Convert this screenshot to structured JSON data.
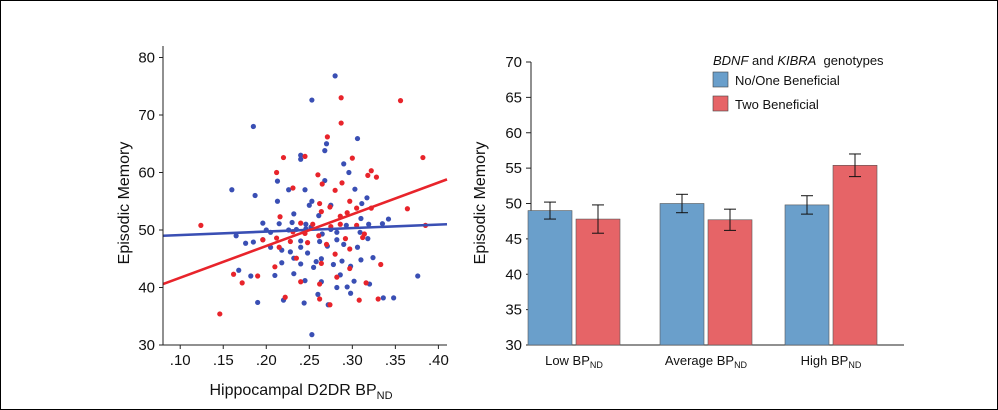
{
  "chart_data": [
    {
      "type": "scatter",
      "xlabel": "Hippocampal D2DR BP",
      "xlabel_sub": "ND",
      "ylabel": "Episodic Memory",
      "xlim": [
        0.08,
        0.41
      ],
      "ylim": [
        30,
        82
      ],
      "xticks": [
        0.1,
        0.15,
        0.2,
        0.25,
        0.3,
        0.35,
        0.4
      ],
      "xtick_labels": [
        ".10",
        ".15",
        ".20",
        ".25",
        ".30",
        ".35",
        ".40"
      ],
      "yticks": [
        30,
        40,
        50,
        60,
        70,
        80
      ],
      "ytick_labels": [
        "30",
        "40",
        "50",
        "60",
        "70",
        "80"
      ],
      "series": [
        {
          "color": "#3a4fb4",
          "fit": [
            [
              0.08,
              49.0
            ],
            [
              0.41,
              51.0
            ]
          ],
          "points": [
            [
              0.185,
              68.0
            ],
            [
              0.28,
              76.8
            ],
            [
              0.253,
              72.6
            ],
            [
              0.306,
              65.9
            ],
            [
              0.24,
              63.0
            ],
            [
              0.268,
              63.8
            ],
            [
              0.27,
              65.0
            ],
            [
              0.24,
              62.3
            ],
            [
              0.16,
              57.0
            ],
            [
              0.213,
              58.5
            ],
            [
              0.268,
              58.6
            ],
            [
              0.29,
              61.5
            ],
            [
              0.296,
              60.0
            ],
            [
              0.303,
              57.1
            ],
            [
              0.245,
              57.0
            ],
            [
              0.226,
              57.0
            ],
            [
              0.187,
              56.0
            ],
            [
              0.317,
              55.6
            ],
            [
              0.311,
              54.6
            ],
            [
              0.275,
              54.3
            ],
            [
              0.25,
              54.3
            ],
            [
              0.253,
              55.0
            ],
            [
              0.213,
              55.0
            ],
            [
              0.232,
              52.8
            ],
            [
              0.261,
              52.5
            ],
            [
              0.196,
              51.2
            ],
            [
              0.215,
              51.1
            ],
            [
              0.226,
              50.0
            ],
            [
              0.235,
              50.1
            ],
            [
              0.246,
              50.2
            ],
            [
              0.23,
              51.3
            ],
            [
              0.246,
              51.0
            ],
            [
              0.252,
              50.5
            ],
            [
              0.275,
              50.1
            ],
            [
              0.293,
              50.8
            ],
            [
              0.309,
              49.6
            ],
            [
              0.319,
              51.0
            ],
            [
              0.335,
              51.1
            ],
            [
              0.342,
              51.9
            ],
            [
              0.165,
              49.0
            ],
            [
              0.176,
              47.7
            ],
            [
              0.185,
              47.9
            ],
            [
              0.196,
              48.3
            ],
            [
              0.205,
              47.0
            ],
            [
              0.218,
              46.5
            ],
            [
              0.228,
              46.2
            ],
            [
              0.24,
              47.0
            ],
            [
              0.248,
              46.0
            ],
            [
              0.262,
              48.0
            ],
            [
              0.271,
              47.2
            ],
            [
              0.282,
              48.3
            ],
            [
              0.29,
              47.5
            ],
            [
              0.306,
              47.0
            ],
            [
              0.318,
              48.5
            ],
            [
              0.205,
              49.6
            ],
            [
              0.24,
              48.1
            ],
            [
              0.265,
              49.3
            ],
            [
              0.282,
              49.6
            ],
            [
              0.218,
              44.3
            ],
            [
              0.232,
              45.1
            ],
            [
              0.24,
              44.1
            ],
            [
              0.255,
              43.5
            ],
            [
              0.264,
              45.0
            ],
            [
              0.278,
              44.0
            ],
            [
              0.288,
              44.6
            ],
            [
              0.298,
              43.7
            ],
            [
              0.31,
              44.8
            ],
            [
              0.324,
              45.2
            ],
            [
              0.168,
              43.0
            ],
            [
              0.182,
              42.0
            ],
            [
              0.21,
              42.1
            ],
            [
              0.232,
              42.4
            ],
            [
              0.245,
              41.2
            ],
            [
              0.264,
              41.0
            ],
            [
              0.286,
              42.2
            ],
            [
              0.302,
              41.1
            ],
            [
              0.32,
              40.6
            ],
            [
              0.19,
              37.4
            ],
            [
              0.22,
              37.8
            ],
            [
              0.244,
              37.3
            ],
            [
              0.26,
              38.8
            ],
            [
              0.282,
              40.0
            ],
            [
              0.298,
              39.0
            ],
            [
              0.336,
              38.2
            ],
            [
              0.348,
              38.2
            ],
            [
              0.376,
              42.0
            ],
            [
              0.253,
              31.8
            ],
            [
              0.272,
              37.0
            ],
            [
              0.294,
              40.1
            ],
            [
              0.31,
              52.0
            ],
            [
              0.2,
              50.0
            ],
            [
              0.258,
              44.5
            ]
          ]
        },
        {
          "color": "#e8242b",
          "fit": [
            [
              0.08,
              40.6
            ],
            [
              0.41,
              58.8
            ]
          ],
          "points": [
            [
              0.287,
              73.0
            ],
            [
              0.356,
              72.5
            ],
            [
              0.287,
              68.6
            ],
            [
              0.271,
              66.2
            ],
            [
              0.22,
              62.6
            ],
            [
              0.245,
              62.8
            ],
            [
              0.3,
              62.5
            ],
            [
              0.322,
              60.3
            ],
            [
              0.318,
              59.5
            ],
            [
              0.328,
              59.2
            ],
            [
              0.212,
              60.0
            ],
            [
              0.26,
              59.6
            ],
            [
              0.288,
              58.2
            ],
            [
              0.265,
              58.0
            ],
            [
              0.231,
              57.3
            ],
            [
              0.28,
              56.9
            ],
            [
              0.297,
              55.0
            ],
            [
              0.274,
              54.0
            ],
            [
              0.305,
              53.8
            ],
            [
              0.322,
              53.8
            ],
            [
              0.216,
              52.3
            ],
            [
              0.262,
              54.6
            ],
            [
              0.24,
              51.2
            ],
            [
              0.254,
              51.0
            ],
            [
              0.264,
              53.2
            ],
            [
              0.286,
              52.4
            ],
            [
              0.294,
              53.0
            ],
            [
              0.231,
              49.7
            ],
            [
              0.245,
              49.4
            ],
            [
              0.275,
              50.6
            ],
            [
              0.286,
              51.0
            ],
            [
              0.305,
              50.8
            ],
            [
              0.196,
              48.3
            ],
            [
              0.212,
              48.6
            ],
            [
              0.228,
              48.0
            ],
            [
              0.261,
              49.0
            ],
            [
              0.292,
              48.5
            ],
            [
              0.314,
              49.3
            ],
            [
              0.124,
              50.8
            ],
            [
              0.215,
              47.0
            ],
            [
              0.248,
              47.8
            ],
            [
              0.27,
              47.5
            ],
            [
              0.297,
              46.7
            ],
            [
              0.312,
              48.7
            ],
            [
              0.264,
              44.2
            ],
            [
              0.28,
              45.8
            ],
            [
              0.297,
              43.3
            ],
            [
              0.333,
              44.0
            ],
            [
              0.21,
              43.6
            ],
            [
              0.235,
              45.1
            ],
            [
              0.162,
              42.3
            ],
            [
              0.19,
              42.0
            ],
            [
              0.24,
              41.0
            ],
            [
              0.262,
              40.6
            ],
            [
              0.282,
              41.8
            ],
            [
              0.316,
              40.8
            ],
            [
              0.172,
              40.8
            ],
            [
              0.222,
              38.3
            ],
            [
              0.262,
              38.0
            ],
            [
              0.308,
              37.8
            ],
            [
              0.33,
              38.0
            ],
            [
              0.274,
              37.0
            ],
            [
              0.146,
              35.4
            ],
            [
              0.364,
              53.7
            ],
            [
              0.382,
              62.6
            ],
            [
              0.385,
              50.8
            ]
          ]
        }
      ]
    },
    {
      "type": "bar",
      "ylabel": "Episodic Memory",
      "ylim": [
        30,
        70
      ],
      "yticks": [
        30,
        35,
        40,
        45,
        50,
        55,
        60,
        65,
        70
      ],
      "ytick_labels": [
        "30",
        "35",
        "40",
        "45",
        "50",
        "55",
        "60",
        "65",
        "70"
      ],
      "categories": [
        {
          "main": "Low BP",
          "sub": "ND"
        },
        {
          "main": "Average BP",
          "sub": "ND"
        },
        {
          "main": "High BP",
          "sub": "ND"
        }
      ],
      "legend_title": {
        "g1": "BDNF",
        "mid": " and ",
        "g2": "KIBRA",
        "end": "  genotypes"
      },
      "legend_position": "top-right",
      "series": [
        {
          "name": "No/One Beneficial",
          "color": "#6a9fcb",
          "values": [
            49.0,
            50.0,
            49.8
          ],
          "errors": [
            1.2,
            1.3,
            1.3
          ]
        },
        {
          "name": "Two Beneficial",
          "color": "#e66467",
          "values": [
            47.8,
            47.7,
            55.4
          ],
          "errors": [
            2.0,
            1.5,
            1.6
          ]
        }
      ]
    }
  ]
}
